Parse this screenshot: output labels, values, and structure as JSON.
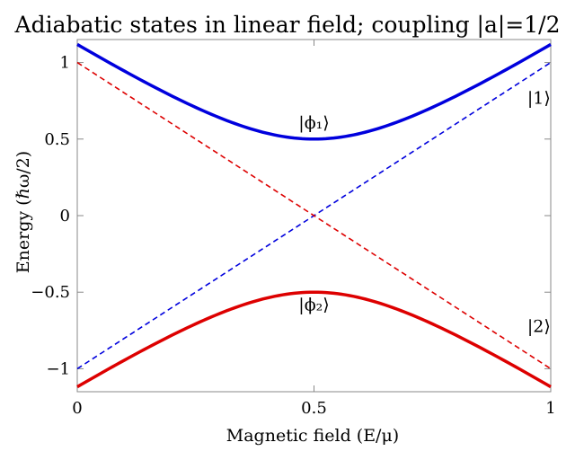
{
  "chart_data": {
    "type": "line",
    "title": "Adiabatic states in linear field; coupling |a|=1/2",
    "xlabel": "Magnetic field (E/μ)",
    "ylabel": "Energy (ℏω/2)",
    "xlim": [
      0,
      1
    ],
    "ylim": [
      -1.15,
      1.15
    ],
    "x_ticks": [
      {
        "value": 0,
        "label": "0"
      },
      {
        "value": 0.5,
        "label": "0.5"
      },
      {
        "value": 1,
        "label": "1"
      }
    ],
    "y_ticks": [
      {
        "value": 1,
        "label": "1"
      },
      {
        "value": 0.5,
        "label": "0.5"
      },
      {
        "value": 0,
        "label": "0"
      },
      {
        "value": -0.5,
        "label": "−0.5"
      },
      {
        "value": -1,
        "label": "−1"
      }
    ],
    "grid": false,
    "series": [
      {
        "style": "solid",
        "color": "#0000dd",
        "x": [
          0,
          0.1,
          0.2,
          0.3,
          0.4,
          0.5,
          0.6,
          0.7,
          0.8,
          0.9,
          1.0
        ],
        "y": [
          1.118,
          0.943,
          0.781,
          0.64,
          0.539,
          0.5,
          0.539,
          0.64,
          0.781,
          0.943,
          1.118
        ]
      },
      {
        "style": "solid",
        "color": "#dd0000",
        "x": [
          0,
          0.1,
          0.2,
          0.3,
          0.4,
          0.5,
          0.6,
          0.7,
          0.8,
          0.9,
          1.0
        ],
        "y": [
          -1.118,
          -0.943,
          -0.781,
          -0.64,
          -0.539,
          -0.5,
          -0.539,
          -0.64,
          -0.781,
          -0.943,
          -1.118
        ]
      },
      {
        "style": "dashed",
        "color": "#0000dd",
        "x": [
          0,
          1
        ],
        "y": [
          -1,
          1
        ]
      },
      {
        "style": "dashed",
        "color": "#dd0000",
        "x": [
          0,
          1
        ],
        "y": [
          1,
          -1
        ]
      }
    ],
    "annotations": [
      {
        "text": "|ϕ₁⟩",
        "x": 0.5,
        "y": 0.57
      },
      {
        "text": "|ϕ₂⟩",
        "x": 0.5,
        "y": -0.62
      },
      {
        "text": "|1⟩",
        "x": 0.975,
        "y": 0.73
      },
      {
        "text": "|2⟩",
        "x": 0.975,
        "y": -0.76
      }
    ]
  }
}
